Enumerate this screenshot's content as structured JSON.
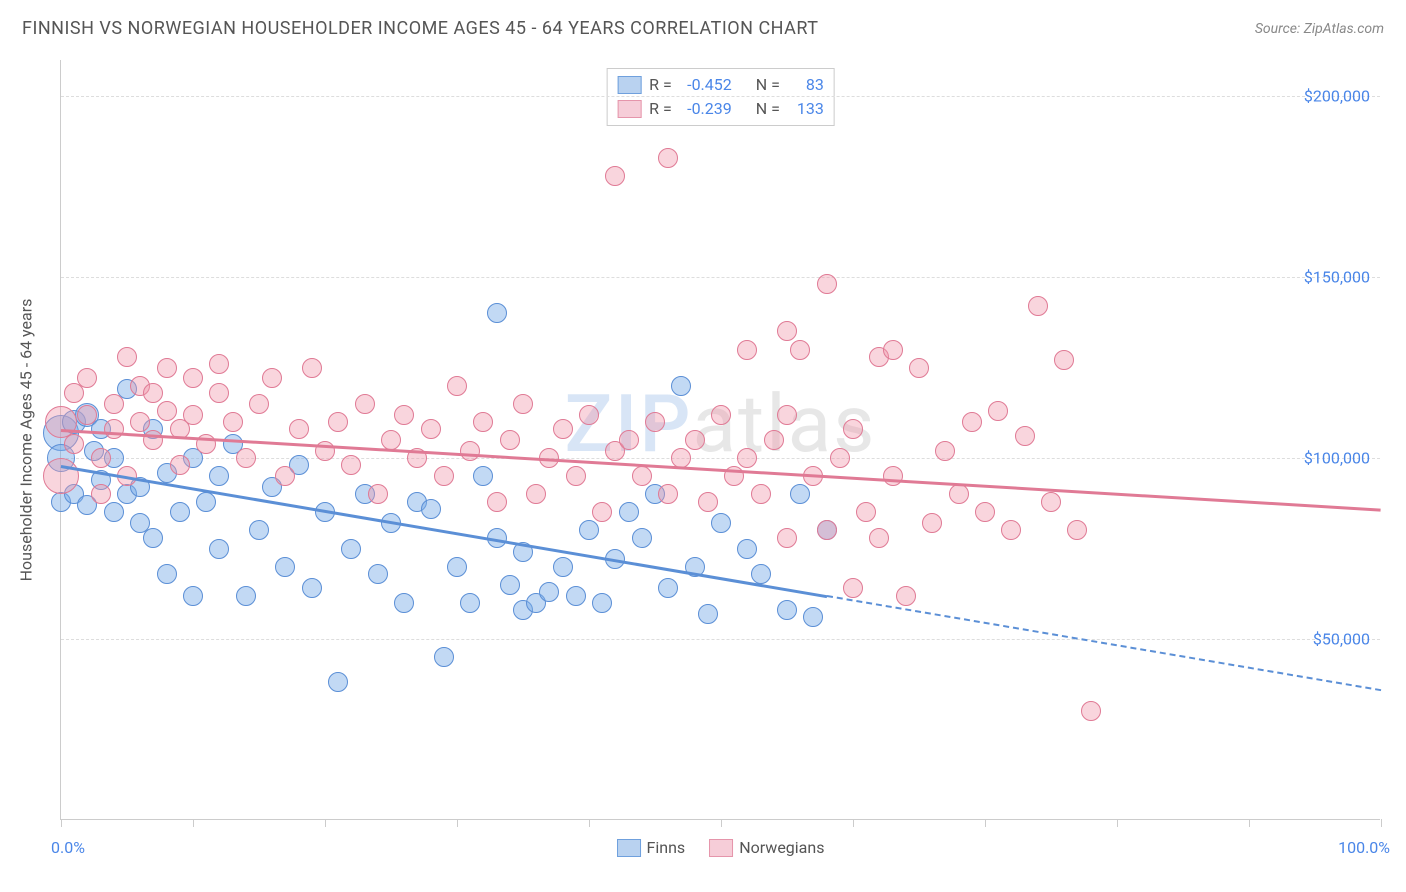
{
  "title": "FINNISH VS NORWEGIAN HOUSEHOLDER INCOME AGES 45 - 64 YEARS CORRELATION CHART",
  "source": "Source: ZipAtlas.com",
  "watermark_prefix": "ZIP",
  "watermark_suffix": "atlas",
  "y_axis_title": "Householder Income Ages 45 - 64 years",
  "x_axis": {
    "min": 0,
    "max": 100,
    "label_left": "0.0%",
    "label_right": "100.0%",
    "tick_positions_pct": [
      0,
      10,
      20,
      30,
      40,
      50,
      60,
      70,
      80,
      90,
      100
    ]
  },
  "y_axis": {
    "min": 0,
    "max": 210000,
    "ticks": [
      50000,
      100000,
      150000,
      200000
    ],
    "tick_labels": [
      "$50,000",
      "$100,000",
      "$150,000",
      "$200,000"
    ]
  },
  "series": [
    {
      "name": "Finns",
      "color_fill": "rgba(120,170,230,0.45)",
      "color_stroke": "#5b8fd6",
      "swatch_fill": "#b9d2f0",
      "swatch_stroke": "#6fa0dd",
      "r_value": "-0.452",
      "n_value": "83",
      "trend": {
        "y_at_x0": 98000,
        "y_at_x100": 36000,
        "solid_until_x": 58
      },
      "points": [
        [
          0,
          107000,
          18
        ],
        [
          0,
          100000,
          14
        ],
        [
          0,
          88000,
          10
        ],
        [
          1,
          110000,
          12
        ],
        [
          1,
          90000,
          10
        ],
        [
          2,
          112000,
          12
        ],
        [
          2,
          87000,
          10
        ],
        [
          2.5,
          102000,
          10
        ],
        [
          3,
          94000,
          10
        ],
        [
          3,
          108000,
          10
        ],
        [
          4,
          85000,
          10
        ],
        [
          4,
          100000,
          10
        ],
        [
          5,
          119000,
          10
        ],
        [
          5,
          90000,
          10
        ],
        [
          6,
          92000,
          10
        ],
        [
          6,
          82000,
          10
        ],
        [
          7,
          108000,
          10
        ],
        [
          7,
          78000,
          10
        ],
        [
          8,
          96000,
          10
        ],
        [
          8,
          68000,
          10
        ],
        [
          9,
          85000,
          10
        ],
        [
          10,
          100000,
          10
        ],
        [
          10,
          62000,
          10
        ],
        [
          11,
          88000,
          10
        ],
        [
          12,
          95000,
          10
        ],
        [
          12,
          75000,
          10
        ],
        [
          13,
          104000,
          10
        ],
        [
          14,
          62000,
          10
        ],
        [
          15,
          80000,
          10
        ],
        [
          16,
          92000,
          10
        ],
        [
          17,
          70000,
          10
        ],
        [
          18,
          98000,
          10
        ],
        [
          19,
          64000,
          10
        ],
        [
          20,
          85000,
          10
        ],
        [
          21,
          38000,
          10
        ],
        [
          22,
          75000,
          10
        ],
        [
          23,
          90000,
          10
        ],
        [
          24,
          68000,
          10
        ],
        [
          25,
          82000,
          10
        ],
        [
          26,
          60000,
          10
        ],
        [
          27,
          88000,
          10
        ],
        [
          28,
          86000,
          10
        ],
        [
          29,
          45000,
          10
        ],
        [
          30,
          70000,
          10
        ],
        [
          31,
          60000,
          10
        ],
        [
          32,
          95000,
          10
        ],
        [
          33,
          78000,
          10
        ],
        [
          33,
          140000,
          10
        ],
        [
          34,
          65000,
          10
        ],
        [
          35,
          58000,
          10
        ],
        [
          35,
          74000,
          10
        ],
        [
          36,
          60000,
          10
        ],
        [
          37,
          63000,
          10
        ],
        [
          38,
          70000,
          10
        ],
        [
          39,
          62000,
          10
        ],
        [
          40,
          80000,
          10
        ],
        [
          41,
          60000,
          10
        ],
        [
          42,
          72000,
          10
        ],
        [
          43,
          85000,
          10
        ],
        [
          44,
          78000,
          10
        ],
        [
          45,
          90000,
          10
        ],
        [
          46,
          64000,
          10
        ],
        [
          47,
          120000,
          10
        ],
        [
          48,
          70000,
          10
        ],
        [
          49,
          57000,
          10
        ],
        [
          50,
          82000,
          10
        ],
        [
          52,
          75000,
          10
        ],
        [
          53,
          68000,
          10
        ],
        [
          55,
          58000,
          10
        ],
        [
          56,
          90000,
          10
        ],
        [
          57,
          56000,
          10
        ],
        [
          58,
          80000,
          10
        ]
      ]
    },
    {
      "name": "Norwegians",
      "color_fill": "rgba(240,150,170,0.40)",
      "color_stroke": "#e07a95",
      "swatch_fill": "#f6cdd8",
      "swatch_stroke": "#e595ab",
      "r_value": "-0.239",
      "n_value": "133",
      "trend": {
        "y_at_x0": 108000,
        "y_at_x100": 86000,
        "solid_until_x": 100
      },
      "points": [
        [
          0,
          110000,
          16
        ],
        [
          0,
          95000,
          18
        ],
        [
          1,
          118000,
          10
        ],
        [
          1,
          104000,
          10
        ],
        [
          2,
          112000,
          10
        ],
        [
          2,
          122000,
          10
        ],
        [
          3,
          100000,
          10
        ],
        [
          3,
          90000,
          10
        ],
        [
          4,
          115000,
          10
        ],
        [
          4,
          108000,
          10
        ],
        [
          5,
          128000,
          10
        ],
        [
          5,
          95000,
          10
        ],
        [
          6,
          110000,
          10
        ],
        [
          6,
          120000,
          10
        ],
        [
          7,
          105000,
          10
        ],
        [
          7,
          118000,
          10
        ],
        [
          8,
          113000,
          10
        ],
        [
          8,
          125000,
          10
        ],
        [
          9,
          108000,
          10
        ],
        [
          9,
          98000,
          10
        ],
        [
          10,
          122000,
          10
        ],
        [
          10,
          112000,
          10
        ],
        [
          11,
          104000,
          10
        ],
        [
          12,
          118000,
          10
        ],
        [
          12,
          126000,
          10
        ],
        [
          13,
          110000,
          10
        ],
        [
          14,
          100000,
          10
        ],
        [
          15,
          115000,
          10
        ],
        [
          16,
          122000,
          10
        ],
        [
          17,
          95000,
          10
        ],
        [
          18,
          108000,
          10
        ],
        [
          19,
          125000,
          10
        ],
        [
          20,
          102000,
          10
        ],
        [
          21,
          110000,
          10
        ],
        [
          22,
          98000,
          10
        ],
        [
          23,
          115000,
          10
        ],
        [
          24,
          90000,
          10
        ],
        [
          25,
          105000,
          10
        ],
        [
          26,
          112000,
          10
        ],
        [
          27,
          100000,
          10
        ],
        [
          28,
          108000,
          10
        ],
        [
          29,
          95000,
          10
        ],
        [
          30,
          120000,
          10
        ],
        [
          31,
          102000,
          10
        ],
        [
          32,
          110000,
          10
        ],
        [
          33,
          88000,
          10
        ],
        [
          34,
          105000,
          10
        ],
        [
          35,
          115000,
          10
        ],
        [
          36,
          90000,
          10
        ],
        [
          37,
          100000,
          10
        ],
        [
          38,
          108000,
          10
        ],
        [
          39,
          95000,
          10
        ],
        [
          40,
          112000,
          10
        ],
        [
          41,
          85000,
          10
        ],
        [
          42,
          102000,
          10
        ],
        [
          42,
          178000,
          10
        ],
        [
          43,
          105000,
          10
        ],
        [
          44,
          95000,
          10
        ],
        [
          45,
          110000,
          10
        ],
        [
          46,
          183000,
          10
        ],
        [
          46,
          90000,
          10
        ],
        [
          47,
          100000,
          10
        ],
        [
          48,
          105000,
          10
        ],
        [
          49,
          88000,
          10
        ],
        [
          50,
          112000,
          10
        ],
        [
          51,
          95000,
          10
        ],
        [
          52,
          100000,
          10
        ],
        [
          52,
          130000,
          10
        ],
        [
          53,
          90000,
          10
        ],
        [
          54,
          105000,
          10
        ],
        [
          55,
          112000,
          10
        ],
        [
          55,
          78000,
          10
        ],
        [
          56,
          130000,
          10
        ],
        [
          57,
          95000,
          10
        ],
        [
          58,
          80000,
          10
        ],
        [
          58,
          148000,
          10
        ],
        [
          59,
          100000,
          10
        ],
        [
          60,
          64000,
          10
        ],
        [
          60,
          108000,
          10
        ],
        [
          61,
          85000,
          10
        ],
        [
          62,
          128000,
          10
        ],
        [
          62,
          78000,
          10
        ],
        [
          63,
          95000,
          10
        ],
        [
          64,
          62000,
          10
        ],
        [
          65,
          125000,
          10
        ],
        [
          66,
          82000,
          10
        ],
        [
          67,
          102000,
          10
        ],
        [
          68,
          90000,
          10
        ],
        [
          69,
          110000,
          10
        ],
        [
          70,
          85000,
          10
        ],
        [
          71,
          113000,
          10
        ],
        [
          72,
          80000,
          10
        ],
        [
          73,
          106000,
          10
        ],
        [
          74,
          142000,
          10
        ],
        [
          75,
          88000,
          10
        ],
        [
          76,
          127000,
          10
        ],
        [
          77,
          80000,
          10
        ],
        [
          78,
          30000,
          10
        ],
        [
          63,
          130000,
          10
        ],
        [
          55,
          135000,
          10
        ]
      ]
    }
  ],
  "colors": {
    "text_title": "#555555",
    "text_axis": "#4a86e8",
    "grid": "#dddddd",
    "border": "#cccccc",
    "background": "#ffffff"
  }
}
